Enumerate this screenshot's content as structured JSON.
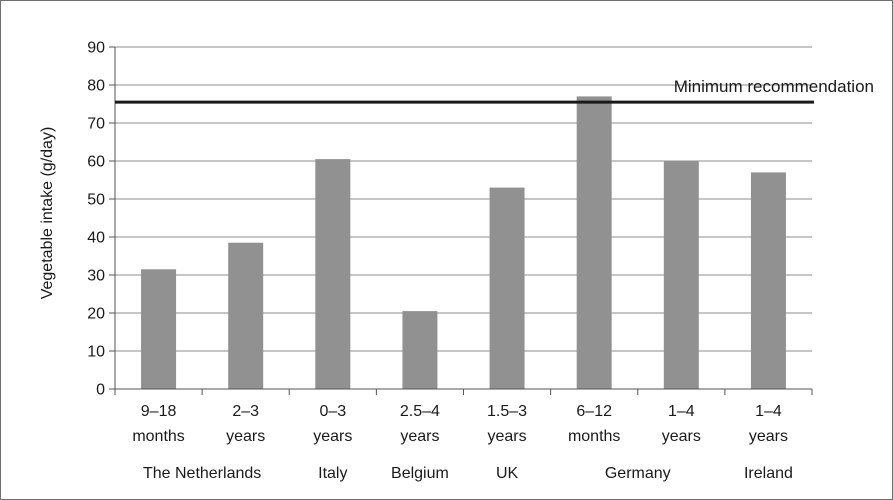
{
  "chart_data": {
    "type": "bar",
    "ylabel": "Vegetable intake (g/day)",
    "ylim": [
      0,
      90
    ],
    "yticks": [
      0,
      10,
      20,
      30,
      40,
      50,
      60,
      70,
      80,
      90
    ],
    "grid": true,
    "categories": [
      {
        "line1": "9–18",
        "line2": "months"
      },
      {
        "line1": "2–3",
        "line2": "years"
      },
      {
        "line1": "0–3",
        "line2": "years"
      },
      {
        "line1": "2.5–4",
        "line2": "years"
      },
      {
        "line1": "1.5–3",
        "line2": "years"
      },
      {
        "line1": "6–12",
        "line2": "months"
      },
      {
        "line1": "1–4",
        "line2": "years"
      },
      {
        "line1": "1–4",
        "line2": "years"
      }
    ],
    "groups": [
      {
        "label": "The Netherlands",
        "start": 0,
        "end": 1
      },
      {
        "label": "Italy",
        "start": 2,
        "end": 2
      },
      {
        "label": "Belgium",
        "start": 3,
        "end": 3
      },
      {
        "label": "UK",
        "start": 4,
        "end": 4
      },
      {
        "label": "Germany",
        "start": 5,
        "end": 6
      },
      {
        "label": "Ireland",
        "start": 7,
        "end": 7
      }
    ],
    "values": [
      31.5,
      38.5,
      60.5,
      20.5,
      53,
      77,
      60,
      57
    ],
    "bar_color": "#919191",
    "reference_line": {
      "value": 75.5,
      "label": "Minimum recommendation",
      "color": "#1a1a1a"
    }
  }
}
